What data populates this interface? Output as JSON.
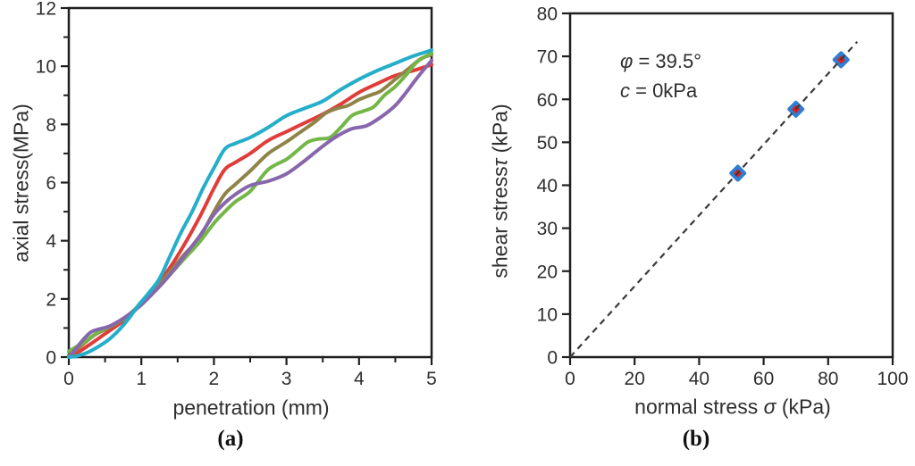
{
  "figure": {
    "background": "#ffffff",
    "axis_color": "#1f1f1f",
    "tick_label_color": "#2e2e2e"
  },
  "panel_a": {
    "caption": "(a)",
    "xlabel": "penetration (mm)",
    "ylabel": "axial stress(MPa)"
  },
  "panel_b": {
    "caption": "(b)",
    "xlabel_pre": "normal stress ",
    "xlabel_sym": "σ",
    "xlabel_post": " (kPa)",
    "ylabel_pre": "shear stress",
    "ylabel_sym": "τ",
    "ylabel_post": " (kPa)",
    "annotation": {
      "sym1": "φ",
      "text1": " = 39.5°",
      "sym2": "c",
      "text2": " = 0kPa"
    }
  },
  "chart_data": [
    {
      "id": "penetration-curves",
      "type": "line",
      "title": "",
      "xlabel": "penetration (mm)",
      "ylabel": "axial stress(MPa)",
      "xlim": [
        0,
        5
      ],
      "ylim": [
        0,
        12
      ],
      "xticks_major": [
        0,
        1,
        2,
        3,
        4,
        5
      ],
      "xticks_minor": [
        0.5,
        1.5,
        2.5,
        3.5,
        4.5
      ],
      "yticks_major": [
        0,
        2,
        4,
        6,
        8,
        10,
        12
      ],
      "yticks_minor": [
        1,
        3,
        5,
        7,
        9,
        11
      ],
      "grid": false,
      "legend": "none",
      "series": [
        {
          "name": "curve-red",
          "color": "#E03D3A",
          "points": [
            [
              0,
              0
            ],
            [
              0.15,
              0.2
            ],
            [
              0.3,
              0.45
            ],
            [
              0.5,
              0.8
            ],
            [
              0.7,
              1.15
            ],
            [
              0.85,
              1.45
            ],
            [
              1.0,
              1.85
            ],
            [
              1.2,
              2.45
            ],
            [
              1.4,
              3.1
            ],
            [
              1.6,
              3.9
            ],
            [
              1.8,
              4.8
            ],
            [
              2.0,
              5.8
            ],
            [
              2.15,
              6.45
            ],
            [
              2.3,
              6.7
            ],
            [
              2.5,
              7.0
            ],
            [
              2.75,
              7.45
            ],
            [
              3.0,
              7.75
            ],
            [
              3.25,
              8.05
            ],
            [
              3.5,
              8.35
            ],
            [
              3.75,
              8.7
            ],
            [
              4.0,
              9.1
            ],
            [
              4.25,
              9.4
            ],
            [
              4.5,
              9.68
            ],
            [
              4.75,
              9.85
            ],
            [
              5.0,
              10.05
            ]
          ]
        },
        {
          "name": "curve-olive",
          "color": "#8F8448",
          "points": [
            [
              0,
              0.05
            ],
            [
              0.2,
              0.45
            ],
            [
              0.35,
              0.75
            ],
            [
              0.5,
              0.95
            ],
            [
              0.65,
              1.15
            ],
            [
              0.8,
              1.4
            ],
            [
              1.0,
              1.85
            ],
            [
              1.2,
              2.35
            ],
            [
              1.4,
              2.95
            ],
            [
              1.6,
              3.55
            ],
            [
              1.8,
              4.1
            ],
            [
              2.0,
              5.0
            ],
            [
              2.15,
              5.6
            ],
            [
              2.3,
              5.95
            ],
            [
              2.5,
              6.4
            ],
            [
              2.75,
              7.0
            ],
            [
              3.0,
              7.4
            ],
            [
              3.2,
              7.75
            ],
            [
              3.4,
              8.1
            ],
            [
              3.55,
              8.4
            ],
            [
              3.7,
              8.55
            ],
            [
              3.85,
              8.65
            ],
            [
              4.0,
              8.85
            ],
            [
              4.15,
              9.0
            ],
            [
              4.3,
              9.15
            ],
            [
              4.5,
              9.55
            ],
            [
              4.7,
              9.95
            ],
            [
              4.85,
              10.25
            ],
            [
              5.0,
              10.4
            ]
          ]
        },
        {
          "name": "curve-green",
          "color": "#74B648",
          "points": [
            [
              0,
              0.2
            ],
            [
              0.2,
              0.5
            ],
            [
              0.4,
              0.85
            ],
            [
              0.6,
              1.1
            ],
            [
              0.8,
              1.4
            ],
            [
              1.0,
              1.85
            ],
            [
              1.2,
              2.3
            ],
            [
              1.4,
              2.85
            ],
            [
              1.6,
              3.4
            ],
            [
              1.8,
              3.95
            ],
            [
              2.0,
              4.6
            ],
            [
              2.15,
              5.0
            ],
            [
              2.3,
              5.35
            ],
            [
              2.5,
              5.7
            ],
            [
              2.75,
              6.45
            ],
            [
              3.0,
              6.8
            ],
            [
              3.15,
              7.1
            ],
            [
              3.3,
              7.4
            ],
            [
              3.45,
              7.5
            ],
            [
              3.6,
              7.55
            ],
            [
              3.75,
              7.9
            ],
            [
              3.9,
              8.3
            ],
            [
              4.05,
              8.45
            ],
            [
              4.2,
              8.6
            ],
            [
              4.35,
              9.0
            ],
            [
              4.5,
              9.3
            ],
            [
              4.65,
              9.7
            ],
            [
              4.8,
              10.15
            ],
            [
              5.0,
              10.45
            ]
          ]
        },
        {
          "name": "curve-purple",
          "color": "#8766AC",
          "points": [
            [
              0,
              0
            ],
            [
              0.1,
              0.3
            ],
            [
              0.2,
              0.6
            ],
            [
              0.3,
              0.85
            ],
            [
              0.4,
              0.95
            ],
            [
              0.55,
              1.05
            ],
            [
              0.7,
              1.25
            ],
            [
              0.85,
              1.5
            ],
            [
              1.0,
              1.8
            ],
            [
              1.2,
              2.3
            ],
            [
              1.4,
              2.85
            ],
            [
              1.6,
              3.5
            ],
            [
              1.8,
              4.15
            ],
            [
              2.0,
              4.9
            ],
            [
              2.15,
              5.3
            ],
            [
              2.3,
              5.6
            ],
            [
              2.5,
              5.9
            ],
            [
              2.75,
              6.05
            ],
            [
              3.0,
              6.3
            ],
            [
              3.25,
              6.75
            ],
            [
              3.5,
              7.25
            ],
            [
              3.7,
              7.6
            ],
            [
              3.9,
              7.85
            ],
            [
              4.1,
              7.95
            ],
            [
              4.3,
              8.25
            ],
            [
              4.5,
              8.65
            ],
            [
              4.65,
              9.1
            ],
            [
              4.8,
              9.6
            ],
            [
              5.0,
              10.2
            ]
          ]
        },
        {
          "name": "curve-cyan",
          "color": "#25AEC9",
          "points": [
            [
              0,
              0
            ],
            [
              0.1,
              0.03
            ],
            [
              0.25,
              0.15
            ],
            [
              0.4,
              0.35
            ],
            [
              0.55,
              0.6
            ],
            [
              0.7,
              0.95
            ],
            [
              0.85,
              1.4
            ],
            [
              0.95,
              1.75
            ],
            [
              1.1,
              2.2
            ],
            [
              1.25,
              2.7
            ],
            [
              1.4,
              3.5
            ],
            [
              1.55,
              4.3
            ],
            [
              1.7,
              5.0
            ],
            [
              1.85,
              5.8
            ],
            [
              2.0,
              6.5
            ],
            [
              2.15,
              7.15
            ],
            [
              2.3,
              7.35
            ],
            [
              2.5,
              7.55
            ],
            [
              2.75,
              7.9
            ],
            [
              3.0,
              8.3
            ],
            [
              3.25,
              8.55
            ],
            [
              3.5,
              8.8
            ],
            [
              3.75,
              9.2
            ],
            [
              4.0,
              9.55
            ],
            [
              4.25,
              9.85
            ],
            [
              4.5,
              10.1
            ],
            [
              4.75,
              10.35
            ],
            [
              5.0,
              10.55
            ]
          ]
        }
      ]
    },
    {
      "id": "mohr-coulomb-fit",
      "type": "scatter",
      "title": "",
      "xlabel": "normal stress σ (kPa)",
      "ylabel": "shear stress τ (kPa)",
      "xlim": [
        0,
        100
      ],
      "ylim": [
        0,
        80
      ],
      "xticks_major": [
        0,
        20,
        40,
        60,
        80,
        100
      ],
      "yticks_major": [
        0,
        10,
        20,
        30,
        40,
        50,
        60,
        70,
        80
      ],
      "grid": false,
      "legend": "none",
      "annotation_lines": [
        "φ = 39.5°",
        "c = 0kPa"
      ],
      "points": [
        [
          52,
          42.8
        ],
        [
          70,
          57.7
        ],
        [
          84,
          69.2
        ]
      ],
      "marker": {
        "shape": "diamond",
        "fill": "#E31C1C",
        "stroke": "#2F7ED2"
      },
      "trendline": {
        "from": [
          0,
          0
        ],
        "to": [
          89,
          73.4
        ],
        "style": "dashed",
        "color": "#3a3a3a",
        "friction_angle_deg": 39.5,
        "cohesion_kpa": 0
      }
    }
  ]
}
